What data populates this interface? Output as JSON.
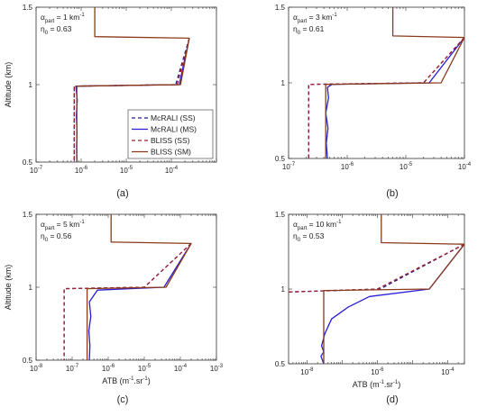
{
  "figure": {
    "background": "#ffffff",
    "axis_color": "#333333"
  },
  "chart_data": [
    {
      "type": "line",
      "panel_label": "(a)",
      "xlabel": "",
      "ylabel": "Altitude (km)",
      "xscale": "log",
      "xlim": [
        1e-07,
        0.001
      ],
      "ylim": [
        0.5,
        1.5
      ],
      "xticks": [
        {
          "v": 1e-07,
          "label": "10"
        },
        {
          "v": 1e-06,
          "label": "10"
        },
        {
          "v": 1e-05,
          "label": "10"
        },
        {
          "v": 0.0001,
          "label": "10"
        }
      ],
      "xtick_exponents": [
        "-7",
        "-6",
        "-5",
        "-4"
      ],
      "yticks": [
        {
          "v": 0.5,
          "label": "0.5"
        },
        {
          "v": 1,
          "label": "1"
        },
        {
          "v": 1.5,
          "label": "1.5"
        }
      ],
      "annotation": {
        "alpha_sym": "α",
        "alpha_sub": "part",
        "alpha_text": " = 1 km",
        "alpha_sup": "-1",
        "eta_sym": "η",
        "eta_sub": "0",
        "eta_text": " = 0.63"
      },
      "legend": {
        "placement": "bottom-right",
        "entries": [
          "McRALI (SS)",
          "McRALI (MS)",
          "BLISS (SS)",
          "BLISS (SM)"
        ]
      },
      "series": [
        {
          "name": "McRALI (SS)",
          "color": "#1f1f8f",
          "dash": "4,3",
          "points": [
            [
              0.00025,
              1.3
            ],
            [
              0.000125,
              1.0
            ],
            [
              7e-07,
              0.99
            ],
            [
              7e-07,
              0.5
            ]
          ]
        },
        {
          "name": "McRALI (MS)",
          "color": "#2b1bd6",
          "dash": "",
          "points": [
            [
              0.00025,
              1.3
            ],
            [
              0.00015,
              1.0
            ],
            [
              7.6e-07,
              0.99
            ],
            [
              8.2e-07,
              0.9
            ],
            [
              7.8e-07,
              0.8
            ],
            [
              8.1e-07,
              0.7
            ],
            [
              7.9e-07,
              0.6
            ],
            [
              8e-07,
              0.5
            ]
          ]
        },
        {
          "name": "BLISS (SS)",
          "color": "#a31e2e",
          "dash": "4,3",
          "points": [
            [
              0.00025,
              1.3
            ],
            [
              0.000135,
              1.0
            ],
            [
              7e-07,
              0.99
            ],
            [
              7e-07,
              0.5
            ]
          ]
        },
        {
          "name": "BLISS (SM)",
          "color": "#8a3a1a",
          "dash": "",
          "points": [
            [
              2e-06,
              1.5
            ],
            [
              2e-06,
              1.31
            ],
            [
              0.00025,
              1.3
            ],
            [
              0.00016,
              1.0
            ],
            [
              8e-07,
              0.99
            ],
            [
              8e-07,
              0.5
            ]
          ]
        }
      ]
    },
    {
      "type": "line",
      "panel_label": "(b)",
      "xlabel": "",
      "ylabel": "",
      "xscale": "log",
      "xlim": [
        1e-07,
        0.0001
      ],
      "ylim": [
        0.5,
        1.5
      ],
      "xticks": [
        {
          "v": 1e-07,
          "label": "10"
        },
        {
          "v": 1e-06,
          "label": "10"
        },
        {
          "v": 1e-05,
          "label": "10"
        },
        {
          "v": 0.0001,
          "label": "10"
        }
      ],
      "xtick_exponents": [
        "-7",
        "-6",
        "-5",
        "-4"
      ],
      "yticks": [
        {
          "v": 0.5,
          "label": "0.5"
        },
        {
          "v": 1,
          "label": "1"
        },
        {
          "v": 1.5,
          "label": "1.5"
        }
      ],
      "annotation": {
        "alpha_sym": "α",
        "alpha_sub": "part",
        "alpha_text": " = 3 km",
        "alpha_sup": "-1",
        "eta_sym": "η",
        "eta_sub": "0",
        "eta_text": " = 0.61"
      },
      "legend": null,
      "series": [
        {
          "name": "McRALI (SS)",
          "color": "#1f1f8f",
          "dash": "4,3",
          "points": [
            [
              0.0001,
              1.3
            ],
            [
              2e-05,
              1.0
            ],
            [
              2.2e-07,
              0.99
            ],
            [
              2.2e-07,
              0.5
            ]
          ]
        },
        {
          "name": "McRALI (MS)",
          "color": "#2b1bd6",
          "dash": "",
          "points": [
            [
              0.0001,
              1.3
            ],
            [
              2.5e-05,
              1.0
            ],
            [
              5.5e-07,
              0.99
            ],
            [
              4.6e-07,
              0.97
            ],
            [
              4.8e-07,
              0.9
            ],
            [
              4.3e-07,
              0.8
            ],
            [
              4.7e-07,
              0.7
            ],
            [
              4.4e-07,
              0.6
            ],
            [
              4.6e-07,
              0.5
            ]
          ]
        },
        {
          "name": "BLISS (SS)",
          "color": "#a31e2e",
          "dash": "4,3",
          "points": [
            [
              0.0001,
              1.3
            ],
            [
              2e-05,
              1.0
            ],
            [
              2.2e-07,
              0.99
            ],
            [
              2.2e-07,
              0.5
            ]
          ]
        },
        {
          "name": "BLISS (SM)",
          "color": "#8a3a1a",
          "dash": "",
          "points": [
            [
              6e-06,
              1.5
            ],
            [
              6e-06,
              1.31
            ],
            [
              0.0001,
              1.3
            ],
            [
              4e-05,
              1.0
            ],
            [
              4.3e-07,
              0.99
            ],
            [
              4.3e-07,
              0.5
            ]
          ]
        }
      ]
    },
    {
      "type": "line",
      "panel_label": "(c)",
      "xlabel": "ATB (m-1.sr-1)",
      "ylabel": "Altitude (km)",
      "xscale": "log",
      "xlim": [
        1e-08,
        0.001
      ],
      "ylim": [
        0.5,
        1.5
      ],
      "xticks": [
        {
          "v": 1e-08,
          "label": "10"
        },
        {
          "v": 1e-07,
          "label": "10"
        },
        {
          "v": 1e-06,
          "label": "10"
        },
        {
          "v": 1e-05,
          "label": "10"
        },
        {
          "v": 0.0001,
          "label": "10"
        },
        {
          "v": 0.001,
          "label": "10"
        }
      ],
      "xtick_exponents": [
        "-8",
        "-7",
        "-6",
        "-5",
        "-4",
        "-3"
      ],
      "yticks": [
        {
          "v": 0.5,
          "label": "0.5"
        },
        {
          "v": 1,
          "label": "1"
        },
        {
          "v": 1.5,
          "label": "1.5"
        }
      ],
      "annotation": {
        "alpha_sym": "α",
        "alpha_sub": "part",
        "alpha_text": " = 5 km",
        "alpha_sup": "-1",
        "eta_sym": "η",
        "eta_sub": "0",
        "eta_text": " = 0.56"
      },
      "legend": null,
      "series": [
        {
          "name": "McRALI (SS)",
          "color": "#1f1f8f",
          "dash": "4,3",
          "points": [
            [
              0.0002,
              1.3
            ],
            [
              1e-05,
              1.0
            ],
            [
              6e-08,
              0.99
            ],
            [
              6e-08,
              0.5
            ]
          ]
        },
        {
          "name": "McRALI (MS)",
          "color": "#2b1bd6",
          "dash": "",
          "points": [
            [
              0.0002,
              1.3
            ],
            [
              3.5e-05,
              1.0
            ],
            [
              5e-07,
              0.98
            ],
            [
              3e-07,
              0.9
            ],
            [
              3.3e-07,
              0.8
            ],
            [
              2.9e-07,
              0.7
            ],
            [
              3.1e-07,
              0.6
            ],
            [
              3e-07,
              0.5
            ]
          ]
        },
        {
          "name": "BLISS (SS)",
          "color": "#a31e2e",
          "dash": "4,3",
          "points": [
            [
              0.0002,
              1.3
            ],
            [
              1e-05,
              1.0
            ],
            [
              6e-08,
              0.99
            ],
            [
              6e-08,
              0.5
            ]
          ]
        },
        {
          "name": "BLISS (SM)",
          "color": "#8a3a1a",
          "dash": "",
          "points": [
            [
              1.2e-06,
              1.5
            ],
            [
              1.2e-06,
              1.31
            ],
            [
              0.0002,
              1.3
            ],
            [
              4e-05,
              1.0
            ],
            [
              2.6e-07,
              0.99
            ],
            [
              2.6e-07,
              0.5
            ]
          ]
        }
      ]
    },
    {
      "type": "line",
      "panel_label": "(d)",
      "xlabel": "ATB (m-1.sr-1)",
      "ylabel": "",
      "xscale": "log",
      "xlim": [
        3e-09,
        0.0003
      ],
      "ylim": [
        0.5,
        1.5
      ],
      "xticks": [
        {
          "v": 1e-08,
          "label": "10"
        },
        {
          "v": 1e-06,
          "label": "10"
        },
        {
          "v": 0.0001,
          "label": "10"
        }
      ],
      "xtick_exponents": [
        "-8",
        "-6",
        "-4"
      ],
      "yticks": [
        {
          "v": 0.5,
          "label": "0.5"
        },
        {
          "v": 1,
          "label": "1"
        },
        {
          "v": 1.5,
          "label": "1.5"
        }
      ],
      "annotation": {
        "alpha_sym": "α",
        "alpha_sub": "part",
        "alpha_text": " = 10 km",
        "alpha_sup": "-1",
        "eta_sym": "η",
        "eta_sub": "0",
        "eta_text": " = 0.53"
      },
      "legend": null,
      "series": [
        {
          "name": "McRALI (SS)",
          "color": "#1f1f8f",
          "dash": "4,3",
          "points": [
            [
              0.0003,
              1.3
            ],
            [
              1.2e-06,
              1.0
            ],
            [
              3e-09,
              0.98
            ]
          ]
        },
        {
          "name": "McRALI (MS)",
          "color": "#2b1bd6",
          "dash": "",
          "points": [
            [
              0.0003,
              1.3
            ],
            [
              3e-05,
              1.0
            ],
            [
              6e-07,
              0.95
            ],
            [
              1.5e-07,
              0.88
            ],
            [
              5e-08,
              0.8
            ],
            [
              3.2e-08,
              0.7
            ],
            [
              2.6e-08,
              0.62
            ],
            [
              3e-08,
              0.58
            ],
            [
              2.5e-08,
              0.55
            ],
            [
              3e-08,
              0.5
            ]
          ]
        },
        {
          "name": "BLISS (SS)",
          "color": "#a31e2e",
          "dash": "4,3",
          "points": [
            [
              0.0003,
              1.3
            ],
            [
              1e-06,
              1.0
            ],
            [
              3e-09,
              0.98
            ]
          ]
        },
        {
          "name": "BLISS (SM)",
          "color": "#8a3a1a",
          "dash": "",
          "points": [
            [
              1.3e-06,
              1.5
            ],
            [
              1.3e-06,
              1.31
            ],
            [
              0.0003,
              1.3
            ],
            [
              3e-05,
              1.0
            ],
            [
              3e-08,
              0.99
            ],
            [
              3e-08,
              0.5
            ]
          ]
        }
      ]
    }
  ]
}
